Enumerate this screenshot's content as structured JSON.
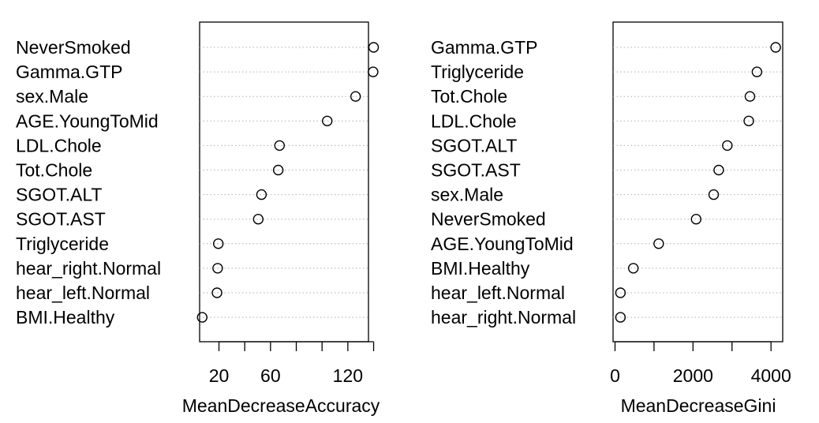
{
  "chart_data": [
    {
      "type": "scatter",
      "title": "",
      "xlabel": "MeanDecreaseAccuracy",
      "ylabel": "",
      "xlim": [
        5,
        136
      ],
      "xticks": [
        20,
        40,
        60,
        80,
        100,
        120,
        140
      ],
      "xtick_labels": [
        "20",
        "",
        "60",
        "",
        "",
        "120",
        ""
      ],
      "grid": "dotted horizontal",
      "categories": [
        "NeverSmoked",
        "Gamma.GTP",
        "sex.Male",
        "AGE.YoungToMid",
        "LDL.Chole",
        "Tot.Chole",
        "SGOT.ALT",
        "SGOT.AST",
        "Triglyceride",
        "hear_right.Normal",
        "hear_left.Normal",
        "BMI.Healthy"
      ],
      "values": [
        140,
        139.6,
        126,
        104,
        67,
        66,
        53,
        50.5,
        19.5,
        19,
        18.5,
        7
      ]
    },
    {
      "type": "scatter",
      "title": "",
      "xlabel": "MeanDecreaseGini",
      "ylabel": "",
      "xlim": [
        -50,
        4300
      ],
      "xticks": [
        0,
        1000,
        2000,
        3000,
        4000
      ],
      "xtick_labels": [
        "0",
        "",
        "2000",
        "",
        "4000"
      ],
      "grid": "dotted horizontal",
      "categories": [
        "Gamma.GTP",
        "Triglyceride",
        "Tot.Chole",
        "LDL.Chole",
        "SGOT.ALT",
        "SGOT.AST",
        "sex.Male",
        "NeverSmoked",
        "AGE.YoungToMid",
        "BMI.Healthy",
        "hear_left.Normal",
        "hear_right.Normal"
      ],
      "values": [
        4120,
        3640,
        3460,
        3430,
        2880,
        2660,
        2530,
        2080,
        1120,
        470,
        140,
        140
      ]
    }
  ]
}
